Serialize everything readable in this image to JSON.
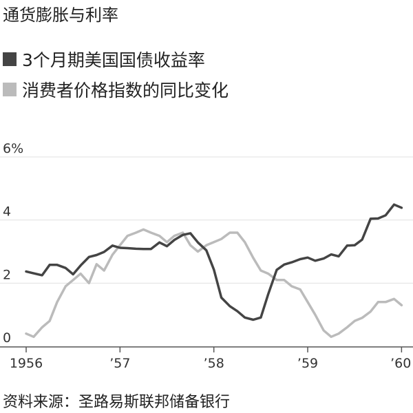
{
  "title": "通货膨胀与利率",
  "source": "资料来源：圣路易斯联邦储备银行",
  "colors": {
    "treasury": "#444444",
    "cpi": "#bbbbbb",
    "grid": "#e0e0e0",
    "axis": "#555555"
  },
  "chart_data": {
    "type": "line",
    "title": "通货膨胀与利率",
    "xlabel": "",
    "ylabel": "",
    "ylim": [
      0,
      6
    ],
    "xlim": [
      1956.0,
      1960.1
    ],
    "grid": true,
    "legend_position": "top-left",
    "y_ticks": [
      {
        "value": 0,
        "label": "0"
      },
      {
        "value": 2,
        "label": "2"
      },
      {
        "value": 4,
        "label": "4"
      },
      {
        "value": 6,
        "label": "6%"
      }
    ],
    "x_ticks": [
      {
        "value": 1956,
        "label": "1956"
      },
      {
        "value": 1957,
        "label": "’57"
      },
      {
        "value": 1958,
        "label": "’58"
      },
      {
        "value": 1959,
        "label": "’59"
      },
      {
        "value": 1960,
        "label": "’60"
      }
    ],
    "series": [
      {
        "name": "3个月期美国国债收益率",
        "color": "#444444",
        "x": [
          1956.0,
          1956.08,
          1956.17,
          1956.25,
          1956.33,
          1956.42,
          1956.5,
          1956.58,
          1956.67,
          1956.75,
          1956.83,
          1956.92,
          1957.0,
          1957.08,
          1957.17,
          1957.25,
          1957.33,
          1957.42,
          1957.5,
          1957.58,
          1957.67,
          1957.75,
          1957.83,
          1957.92,
          1958.0,
          1958.08,
          1958.17,
          1958.25,
          1958.33,
          1958.42,
          1958.5,
          1958.58,
          1958.67,
          1958.75,
          1958.83,
          1958.92,
          1959.0,
          1959.08,
          1959.17,
          1959.25,
          1959.33,
          1959.42,
          1959.5,
          1959.58,
          1959.67,
          1959.75,
          1959.83,
          1959.92,
          1960.0
        ],
        "values": [
          2.37,
          2.31,
          2.25,
          2.58,
          2.58,
          2.48,
          2.28,
          2.56,
          2.83,
          2.89,
          2.99,
          3.19,
          3.12,
          3.11,
          3.09,
          3.08,
          3.08,
          3.29,
          3.17,
          3.37,
          3.53,
          3.58,
          3.29,
          3.04,
          2.43,
          1.54,
          1.27,
          1.11,
          0.91,
          0.84,
          0.91,
          1.66,
          2.42,
          2.59,
          2.66,
          2.76,
          2.81,
          2.71,
          2.78,
          2.91,
          2.85,
          3.19,
          3.2,
          3.38,
          4.04,
          4.05,
          4.15,
          4.49,
          4.39
        ]
      },
      {
        "name": "消费者价格指数的同比变化",
        "color": "#bbbbbb",
        "x": [
          1956.0,
          1956.08,
          1956.17,
          1956.25,
          1956.33,
          1956.42,
          1956.5,
          1956.58,
          1956.67,
          1956.75,
          1956.83,
          1956.92,
          1957.0,
          1957.08,
          1957.17,
          1957.25,
          1957.33,
          1957.42,
          1957.5,
          1957.58,
          1957.67,
          1957.75,
          1957.83,
          1957.92,
          1958.0,
          1958.08,
          1958.17,
          1958.25,
          1958.33,
          1958.42,
          1958.5,
          1958.58,
          1958.67,
          1958.75,
          1958.83,
          1958.92,
          1959.0,
          1959.08,
          1959.17,
          1959.25,
          1959.33,
          1959.42,
          1959.5,
          1959.58,
          1959.67,
          1959.75,
          1959.83,
          1959.92,
          1960.0
        ],
        "values": [
          0.4,
          0.3,
          0.6,
          0.8,
          1.4,
          1.9,
          2.1,
          2.3,
          2.0,
          2.6,
          2.4,
          2.9,
          3.2,
          3.5,
          3.6,
          3.7,
          3.6,
          3.5,
          3.3,
          3.5,
          3.6,
          3.2,
          3.0,
          3.2,
          3.3,
          3.4,
          3.6,
          3.6,
          3.3,
          2.8,
          2.4,
          2.3,
          2.1,
          2.1,
          1.9,
          1.8,
          1.4,
          1.0,
          0.5,
          0.3,
          0.4,
          0.6,
          0.8,
          0.9,
          1.1,
          1.4,
          1.4,
          1.5,
          1.3
        ]
      }
    ]
  }
}
